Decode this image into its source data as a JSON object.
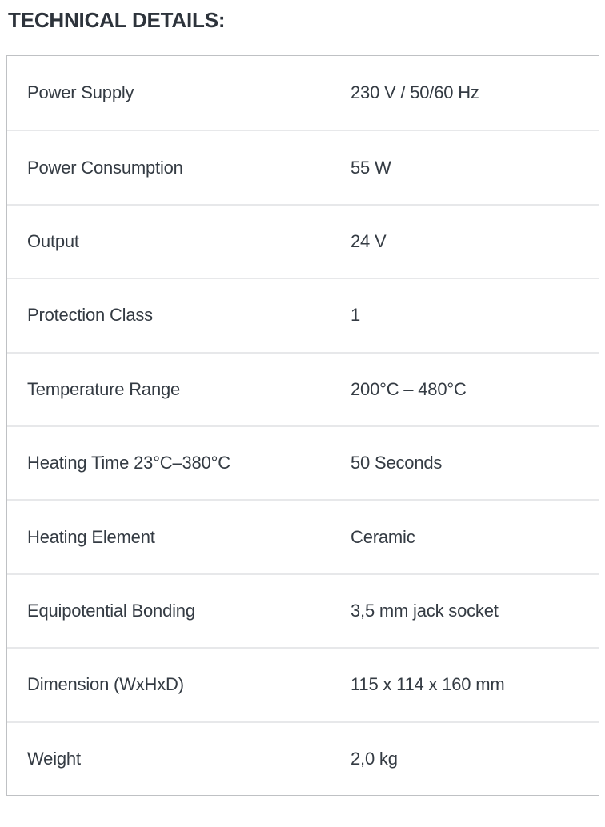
{
  "heading": "TECHNICAL DETAILS:",
  "table": {
    "rows": [
      {
        "label": "Power Supply",
        "value": "230 V / 50/60 Hz"
      },
      {
        "label": "Power Consumption",
        "value": "55 W"
      },
      {
        "label": "Output",
        "value": "24 V"
      },
      {
        "label": "Protection Class",
        "value": "1"
      },
      {
        "label": "Temperature Range",
        "value": "200°C – 480°C"
      },
      {
        "label": "Heating Time 23°C–380°C",
        "value": "50 Seconds"
      },
      {
        "label": "Heating Element",
        "value": "Ceramic"
      },
      {
        "label": "Equipotential Bonding",
        "value": "3,5 mm jack socket"
      },
      {
        "label": "Dimension (WxHxD)",
        "value": "115 x 114 x 160 mm"
      },
      {
        "label": "Weight",
        "value": "2,0 kg"
      }
    ]
  },
  "colors": {
    "background": "#ffffff",
    "heading_text": "#2d333b",
    "body_text": "#343b43",
    "table_outer_border": "#bfc1c4",
    "row_separator": "#e7e8ea"
  }
}
